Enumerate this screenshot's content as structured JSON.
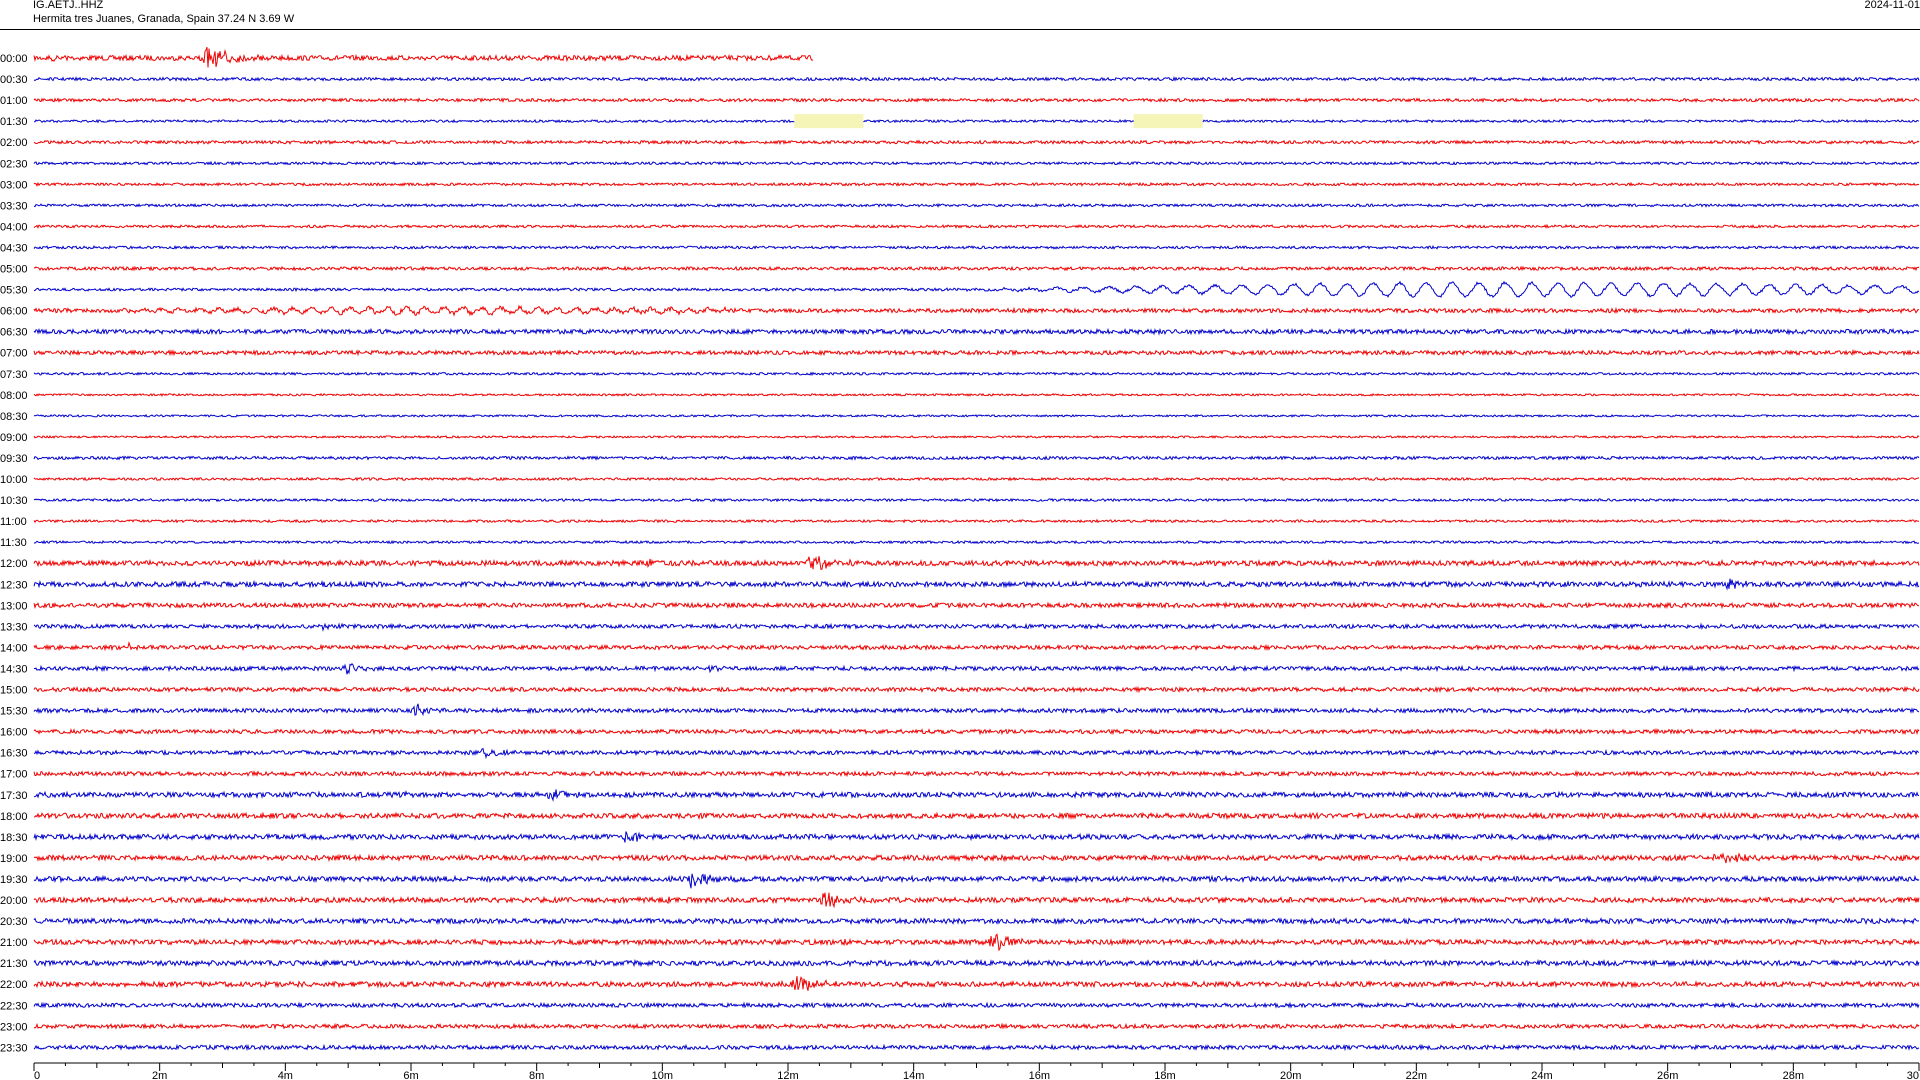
{
  "header": {
    "station": "IG.AETJ..HHZ",
    "location": "Hermita tres Juanes, Granada, Spain  37.24 N 3.69 W",
    "date": "2024-11-01"
  },
  "colors": {
    "red": "#ee0000",
    "blue": "#0000cc",
    "gap": "#f5f5b8",
    "axis": "#000000"
  },
  "chart_data": {
    "type": "line",
    "title": "",
    "xlabel": "",
    "ylabel": "",
    "xlim": [
      0,
      30
    ],
    "x_ticks": [
      "0",
      "2m",
      "4m",
      "6m",
      "8m",
      "10m",
      "12m",
      "14m",
      "16m",
      "18m",
      "20m",
      "22m",
      "24m",
      "26m",
      "28m",
      "30"
    ],
    "rows": [
      "00:00",
      "00:30",
      "01:00",
      "01:30",
      "02:00",
      "02:30",
      "03:00",
      "03:30",
      "04:00",
      "04:30",
      "05:00",
      "05:30",
      "06:00",
      "06:30",
      "07:00",
      "07:30",
      "08:00",
      "08:30",
      "09:00",
      "09:30",
      "10:00",
      "10:30",
      "11:00",
      "11:30",
      "12:00",
      "12:30",
      "13:00",
      "13:30",
      "14:00",
      "14:30",
      "15:00",
      "15:30",
      "16:00",
      "16:30",
      "17:00",
      "17:30",
      "18:00",
      "18:30",
      "19:00",
      "19:30",
      "20:00",
      "20:30",
      "21:00",
      "21:30",
      "22:00",
      "22:30",
      "23:00",
      "23:30"
    ],
    "trace_colors": [
      "red",
      "blue"
    ],
    "noise": [
      2.5,
      1.5,
      1.5,
      1.2,
      1.5,
      1.3,
      1.3,
      1.3,
      1.3,
      1.3,
      1.6,
      1.3,
      2.0,
      2.2,
      2.0,
      1.2,
      1.0,
      1.0,
      1.0,
      1.5,
      1.2,
      1.2,
      1.2,
      1.2,
      2.5,
      2.5,
      2.2,
      2.0,
      2.0,
      2.0,
      2.0,
      2.0,
      2.0,
      2.0,
      2.0,
      2.5,
      2.5,
      2.5,
      2.5,
      2.5,
      2.5,
      2.5,
      2.5,
      2.5,
      2.5,
      2.0,
      2.0,
      2.0
    ],
    "data_end_minutes": [
      12.4,
      null,
      null,
      null,
      null,
      null,
      null,
      null,
      null,
      null,
      null,
      null,
      null,
      null,
      null,
      null,
      null,
      null,
      null,
      null,
      null,
      null,
      null,
      null,
      null,
      null,
      null,
      null,
      null,
      null,
      null,
      null,
      null,
      null,
      null,
      null,
      null,
      null,
      null,
      null,
      null,
      null,
      null,
      null,
      null,
      null,
      null,
      null
    ],
    "gaps": [
      {
        "row": 3,
        "start": 12.1,
        "end": 13.2
      },
      {
        "row": 3,
        "start": 17.5,
        "end": 18.6
      }
    ],
    "events": [
      {
        "row": 0,
        "at": 0.3,
        "amp": 4,
        "width": 0.08
      },
      {
        "row": 0,
        "at": 2.8,
        "amp": 11,
        "width": 0.25
      },
      {
        "row": 24,
        "at": 9.8,
        "amp": 4,
        "width": 0.08
      },
      {
        "row": 24,
        "at": 12.4,
        "amp": 8,
        "width": 0.25
      },
      {
        "row": 25,
        "at": 27.0,
        "amp": 5,
        "width": 0.2
      },
      {
        "row": 27,
        "at": 4.6,
        "amp": 4,
        "width": 0.15
      },
      {
        "row": 28,
        "at": 1.5,
        "amp": 3,
        "width": 0.1
      },
      {
        "row": 29,
        "at": 3.1,
        "amp": 2,
        "width": 0.08
      },
      {
        "row": 29,
        "at": 5.0,
        "amp": 6,
        "width": 0.2
      },
      {
        "row": 29,
        "at": 10.7,
        "amp": 3,
        "width": 0.12
      },
      {
        "row": 31,
        "at": 6.1,
        "amp": 6,
        "width": 0.2
      },
      {
        "row": 33,
        "at": 7.2,
        "amp": 5,
        "width": 0.2
      },
      {
        "row": 35,
        "at": 5.9,
        "amp": 3,
        "width": 0.05
      },
      {
        "row": 35,
        "at": 8.3,
        "amp": 8,
        "width": 0.22
      },
      {
        "row": 37,
        "at": 7.0,
        "amp": 4,
        "width": 0.05
      },
      {
        "row": 37,
        "at": 9.4,
        "amp": 7,
        "width": 0.22
      },
      {
        "row": 38,
        "at": 26.9,
        "amp": 4,
        "width": 0.4
      },
      {
        "row": 39,
        "at": 8.1,
        "amp": 5,
        "width": 0.04
      },
      {
        "row": 39,
        "at": 10.5,
        "amp": 10,
        "width": 0.22
      },
      {
        "row": 40,
        "at": 10.1,
        "amp": 3,
        "width": 0.05
      },
      {
        "row": 40,
        "at": 12.6,
        "amp": 9,
        "width": 0.25
      },
      {
        "row": 42,
        "at": 12.9,
        "amp": 3,
        "width": 0.05
      },
      {
        "row": 42,
        "at": 15.3,
        "amp": 9,
        "width": 0.25
      },
      {
        "row": 44,
        "at": 9.7,
        "amp": 4,
        "width": 0.04
      },
      {
        "row": 44,
        "at": 12.1,
        "amp": 10,
        "width": 0.28
      }
    ],
    "long_period_waves": [
      {
        "row": 11,
        "start": 14.2,
        "end": 30,
        "amp": 7,
        "period": 0.42
      },
      {
        "row": 12,
        "start": 0,
        "end": 11,
        "amp": 3,
        "period": 0.3
      }
    ]
  }
}
